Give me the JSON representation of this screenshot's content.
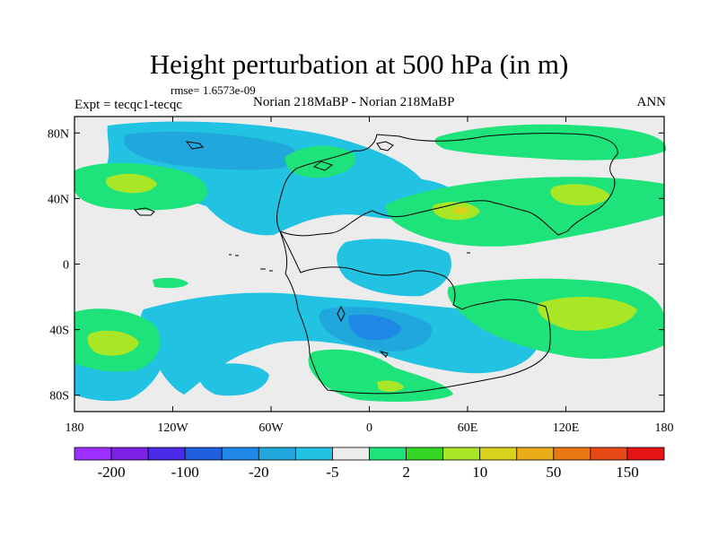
{
  "title": "Height perturbation at 500 hPa (in m)",
  "rmse_label": "rmse= 1.6573e-09",
  "experiment_label": "Expt = tecqc1-tecqc",
  "runs_label": "Norian 218MaBP - Norian 218MaBP",
  "season_label": "ANN",
  "map": {
    "lat_ticks": [
      {
        "label": "80N",
        "lat": 80
      },
      {
        "label": "40N",
        "lat": 40
      },
      {
        "label": "0",
        "lat": 0
      },
      {
        "label": "40S",
        "lat": -40
      },
      {
        "label": "80S",
        "lat": -80
      }
    ],
    "lon_ticks": [
      {
        "label": "180",
        "lon": -180
      },
      {
        "label": "120W",
        "lon": -120
      },
      {
        "label": "60W",
        "lon": -60
      },
      {
        "label": "0",
        "lon": 0
      },
      {
        "label": "60E",
        "lon": 60
      },
      {
        "label": "120E",
        "lon": 120
      },
      {
        "label": "180",
        "lon": 180
      }
    ]
  },
  "colorbar": {
    "colors": [
      "#9b30ff",
      "#7b22e6",
      "#4a2ae6",
      "#1f5fe0",
      "#1e88e6",
      "#20a8dc",
      "#22c3e2",
      "#ececec",
      "#1ee37a",
      "#33d622",
      "#a8e626",
      "#d8d21c",
      "#e8ac18",
      "#ea7614",
      "#e64816",
      "#e81414"
    ],
    "labels": [
      {
        "text": "-200",
        "boundary": 1
      },
      {
        "text": "-100",
        "boundary": 3
      },
      {
        "text": "-20",
        "boundary": 5
      },
      {
        "text": "-5",
        "boundary": 7
      },
      {
        "text": "2",
        "boundary": 9
      },
      {
        "text": "10",
        "boundary": 11
      },
      {
        "text": "50",
        "boundary": 13
      },
      {
        "text": "150",
        "boundary": 15
      }
    ]
  }
}
